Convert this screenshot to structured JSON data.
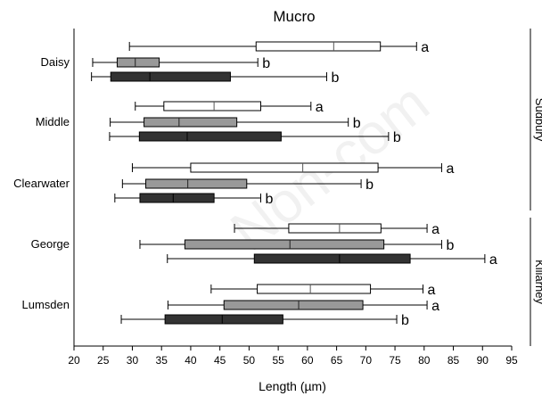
{
  "chart_data": {
    "type": "boxplot",
    "orientation": "horizontal",
    "title": "Mucro",
    "xlabel": "Length (µm)",
    "xlim": [
      20,
      95
    ],
    "xticks": [
      20,
      25,
      30,
      35,
      40,
      45,
      50,
      55,
      60,
      65,
      70,
      75,
      80,
      85,
      90,
      95
    ],
    "grid": false,
    "groups": [
      {
        "name": "Sudbury",
        "categories": [
          "Daisy",
          "Middle",
          "Clearwater"
        ]
      },
      {
        "name": "Killarney",
        "categories": [
          "George",
          "Lumsden"
        ]
      }
    ],
    "categories": [
      "Daisy",
      "Middle",
      "Clearwater",
      "George",
      "Lumsden"
    ],
    "box_styles": [
      {
        "fill": "#ffffff"
      },
      {
        "fill": "#999999"
      },
      {
        "fill": "#333333"
      }
    ],
    "boxes": [
      {
        "category": "Daisy",
        "style": 0,
        "min": 29.5,
        "q1": 51.2,
        "median": 64.5,
        "q3": 72.5,
        "max": 78.7,
        "letter": "a"
      },
      {
        "category": "Daisy",
        "style": 1,
        "min": 23.2,
        "q1": 27.4,
        "median": 30.5,
        "q3": 34.6,
        "max": 51.5,
        "letter": "b"
      },
      {
        "category": "Daisy",
        "style": 2,
        "min": 23.0,
        "q1": 26.3,
        "median": 33.0,
        "q3": 46.8,
        "max": 63.3,
        "letter": "b"
      },
      {
        "category": "Middle",
        "style": 0,
        "min": 30.5,
        "q1": 35.4,
        "median": 44.0,
        "q3": 52.0,
        "max": 60.6,
        "letter": "a"
      },
      {
        "category": "Middle",
        "style": 1,
        "min": 26.2,
        "q1": 32.0,
        "median": 38.0,
        "q3": 47.9,
        "max": 67.0,
        "letter": "b"
      },
      {
        "category": "Middle",
        "style": 2,
        "min": 26.1,
        "q1": 31.2,
        "median": 39.4,
        "q3": 55.5,
        "max": 73.9,
        "letter": "b"
      },
      {
        "category": "Clearwater",
        "style": 0,
        "min": 30.0,
        "q1": 40.0,
        "median": 59.2,
        "q3": 72.1,
        "max": 83.0,
        "letter": "a"
      },
      {
        "category": "Clearwater",
        "style": 1,
        "min": 28.3,
        "q1": 32.3,
        "median": 39.5,
        "q3": 49.6,
        "max": 69.2,
        "letter": "b"
      },
      {
        "category": "Clearwater",
        "style": 2,
        "min": 27.0,
        "q1": 31.3,
        "median": 37.0,
        "q3": 44.0,
        "max": 52.0,
        "letter": "b"
      },
      {
        "category": "George",
        "style": 0,
        "min": 47.5,
        "q1": 56.8,
        "median": 65.5,
        "q3": 72.6,
        "max": 80.5,
        "letter": "a"
      },
      {
        "category": "George",
        "style": 1,
        "min": 31.3,
        "q1": 39.0,
        "median": 57.0,
        "q3": 73.1,
        "max": 83.0,
        "letter": "b"
      },
      {
        "category": "George",
        "style": 2,
        "min": 36.0,
        "q1": 50.9,
        "median": 65.5,
        "q3": 77.6,
        "max": 90.4,
        "letter": "a"
      },
      {
        "category": "Lumsden",
        "style": 0,
        "min": 43.5,
        "q1": 51.4,
        "median": 60.5,
        "q3": 70.8,
        "max": 79.8,
        "letter": "a"
      },
      {
        "category": "Lumsden",
        "style": 1,
        "min": 36.1,
        "q1": 45.7,
        "median": 58.5,
        "q3": 69.5,
        "max": 80.5,
        "letter": "a"
      },
      {
        "category": "Lumsden",
        "style": 2,
        "min": 28.1,
        "q1": 35.6,
        "median": 45.4,
        "q3": 55.8,
        "max": 75.3,
        "letter": "b"
      }
    ]
  }
}
